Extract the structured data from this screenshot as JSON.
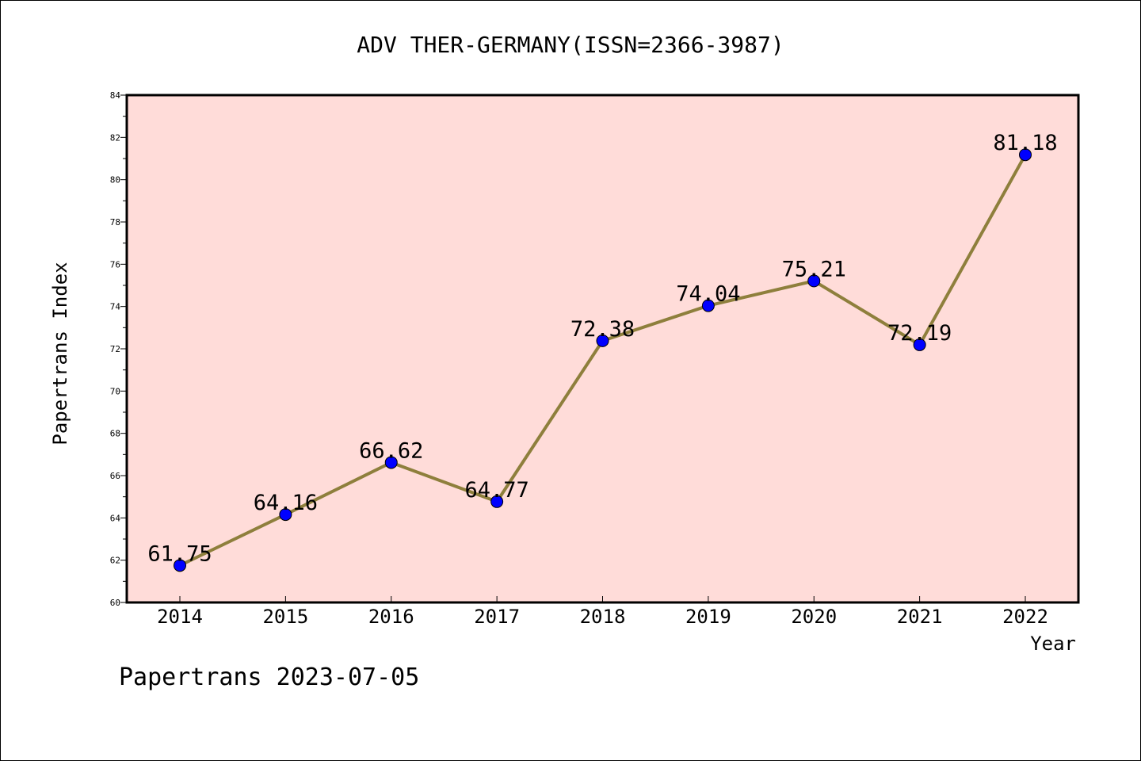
{
  "chart_data": {
    "type": "line",
    "title": "ADV THER-GERMANY(ISSN=2366-3987)",
    "xlabel": "Year",
    "ylabel": "Papertrans Index",
    "categories": [
      "2014",
      "2015",
      "2016",
      "2017",
      "2018",
      "2019",
      "2020",
      "2021",
      "2022"
    ],
    "values": [
      61.75,
      64.16,
      66.62,
      64.77,
      72.38,
      74.04,
      75.21,
      72.19,
      81.18
    ],
    "data_labels": [
      "61.75",
      "64.16",
      "66.62",
      "64.77",
      "72.38",
      "74.04",
      "75.21",
      "72.19",
      "81.18"
    ],
    "ylim": [
      60,
      84
    ],
    "yticks": [
      "60",
      "62",
      "64",
      "66",
      "68",
      "70",
      "72",
      "74",
      "76",
      "78",
      "80",
      "82",
      "84"
    ],
    "grid": false,
    "colors": {
      "plot_background": "#ffdcd9",
      "line": "#8e7f3c",
      "marker": "#0000ff"
    }
  },
  "footer": "Papertrans 2023-07-05"
}
